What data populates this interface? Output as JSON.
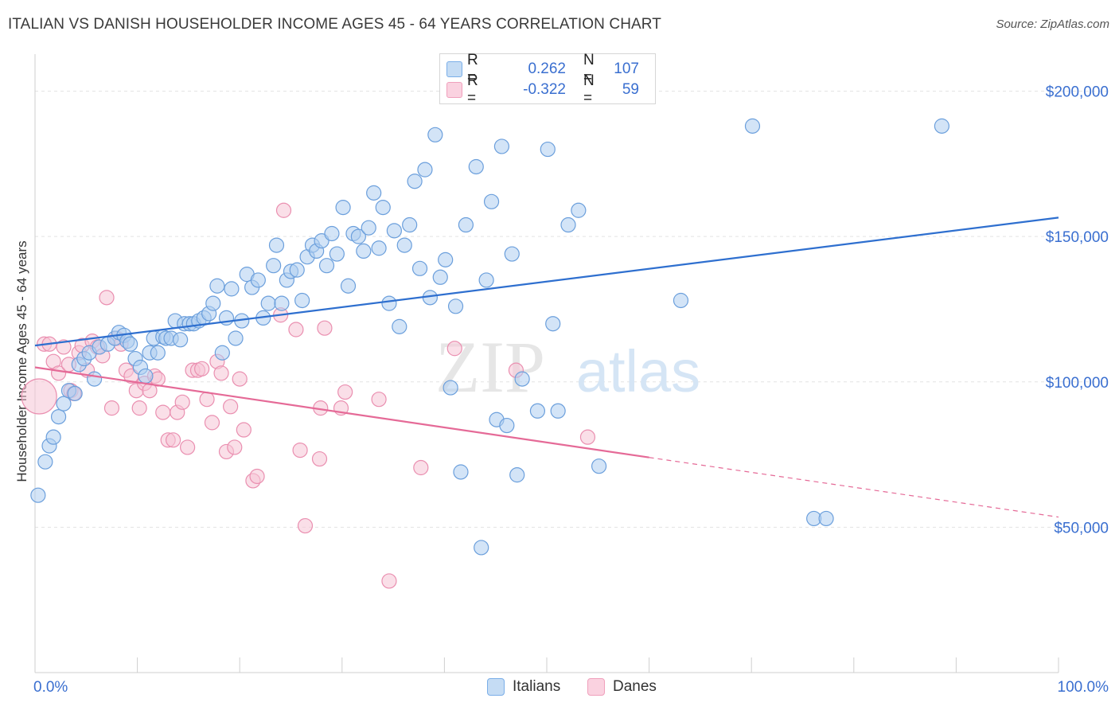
{
  "title": "ITALIAN VS DANISH HOUSEHOLDER INCOME AGES 45 - 64 YEARS CORRELATION CHART",
  "source": "Source: ZipAtlas.com",
  "watermark": {
    "part1": "ZIP",
    "part2": "atlas"
  },
  "legend": {
    "rows": [
      {
        "r_label": "R =",
        "r_value": "0.262",
        "n_label": "N =",
        "n_value": "107",
        "color": "#7aaee8"
      },
      {
        "r_label": "R =",
        "r_value": "-0.322",
        "n_label": "N =",
        "n_value": "59",
        "color": "#f0a0bc"
      }
    ]
  },
  "colors": {
    "italians_fill": "#aecdf0",
    "italians_stroke": "#6b9fdc",
    "italians_line": "#2e6fcf",
    "danes_fill": "#f6c4d6",
    "danes_stroke": "#ea8fb0",
    "danes_line": "#e56a97",
    "tick_label": "#3a6fd0",
    "grid": "#e3e3e3"
  },
  "chart_data": {
    "type": "scatter",
    "title": "ITALIAN VS DANISH HOUSEHOLDER INCOME AGES 45 - 64 YEARS CORRELATION CHART",
    "xlabel": "",
    "ylabel": "Householder Income Ages 45 - 64 years",
    "xlim": [
      0,
      100
    ],
    "ylim": [
      0,
      210000
    ],
    "x_tick_labels": [
      "0.0%",
      "100.0%"
    ],
    "y_ticks": [
      50000,
      100000,
      150000,
      200000
    ],
    "y_tick_labels": [
      "$50,000",
      "$100,000",
      "$150,000",
      "$200,000"
    ],
    "grid": "horizontal dashed",
    "legend_position": "bottom-center",
    "series": [
      {
        "name": "Italians",
        "r": 0.262,
        "n": 107,
        "trend": {
          "x": [
            0,
            100
          ],
          "y": [
            112500,
            156500
          ]
        },
        "points": [
          [
            0.3,
            61000
          ],
          [
            1.0,
            72500
          ],
          [
            1.4,
            78000
          ],
          [
            1.8,
            81000
          ],
          [
            2.3,
            88000
          ],
          [
            2.8,
            92500
          ],
          [
            3.3,
            97000
          ],
          [
            3.9,
            96000
          ],
          [
            4.3,
            106000
          ],
          [
            4.8,
            108000
          ],
          [
            5.3,
            110000
          ],
          [
            5.8,
            101000
          ],
          [
            6.3,
            112000
          ],
          [
            7.1,
            113000
          ],
          [
            7.8,
            115000
          ],
          [
            8.2,
            117000
          ],
          [
            8.7,
            116000
          ],
          [
            9.0,
            114000
          ],
          [
            9.3,
            113000
          ],
          [
            9.8,
            108000
          ],
          [
            10.3,
            105000
          ],
          [
            10.8,
            102000
          ],
          [
            11.2,
            110000
          ],
          [
            11.6,
            115000
          ],
          [
            12.0,
            110000
          ],
          [
            12.5,
            115500
          ],
          [
            12.8,
            115000
          ],
          [
            13.3,
            115000
          ],
          [
            13.7,
            121000
          ],
          [
            14.2,
            114500
          ],
          [
            14.6,
            120000
          ],
          [
            15.1,
            120000
          ],
          [
            15.5,
            120000
          ],
          [
            16.0,
            121000
          ],
          [
            16.5,
            122000
          ],
          [
            17.0,
            123500
          ],
          [
            17.4,
            127000
          ],
          [
            17.8,
            133000
          ],
          [
            18.3,
            110000
          ],
          [
            18.7,
            122000
          ],
          [
            19.2,
            132000
          ],
          [
            19.6,
            115000
          ],
          [
            20.2,
            121000
          ],
          [
            20.7,
            137000
          ],
          [
            21.2,
            132500
          ],
          [
            21.8,
            135000
          ],
          [
            22.3,
            122000
          ],
          [
            22.8,
            127000
          ],
          [
            23.3,
            140000
          ],
          [
            23.6,
            147000
          ],
          [
            24.1,
            127000
          ],
          [
            24.6,
            135000
          ],
          [
            25.0,
            138000
          ],
          [
            25.6,
            138500
          ],
          [
            26.1,
            128000
          ],
          [
            26.6,
            143000
          ],
          [
            27.1,
            147000
          ],
          [
            27.5,
            145000
          ],
          [
            28.0,
            148500
          ],
          [
            28.5,
            140000
          ],
          [
            29.0,
            151000
          ],
          [
            29.5,
            144000
          ],
          [
            30.1,
            160000
          ],
          [
            30.6,
            133000
          ],
          [
            31.1,
            151000
          ],
          [
            31.6,
            150000
          ],
          [
            32.1,
            145000
          ],
          [
            32.6,
            153000
          ],
          [
            33.1,
            165000
          ],
          [
            33.6,
            146000
          ],
          [
            34.0,
            160000
          ],
          [
            34.6,
            127000
          ],
          [
            35.1,
            152000
          ],
          [
            35.6,
            119000
          ],
          [
            36.1,
            147000
          ],
          [
            36.6,
            154000
          ],
          [
            37.1,
            169000
          ],
          [
            37.6,
            139000
          ],
          [
            38.1,
            173000
          ],
          [
            38.6,
            129000
          ],
          [
            39.1,
            185000
          ],
          [
            39.6,
            136000
          ],
          [
            40.1,
            142000
          ],
          [
            40.6,
            98000
          ],
          [
            41.1,
            126000
          ],
          [
            41.6,
            69000
          ],
          [
            42.1,
            154000
          ],
          [
            43.1,
            174000
          ],
          [
            43.6,
            43000
          ],
          [
            44.1,
            135000
          ],
          [
            44.6,
            162000
          ],
          [
            45.1,
            87000
          ],
          [
            45.6,
            181000
          ],
          [
            46.1,
            85000
          ],
          [
            46.6,
            144000
          ],
          [
            47.1,
            68000
          ],
          [
            47.6,
            101000
          ],
          [
            49.1,
            90000
          ],
          [
            50.1,
            180000
          ],
          [
            50.6,
            120000
          ],
          [
            51.1,
            90000
          ],
          [
            52.1,
            154000
          ],
          [
            53.1,
            159000
          ],
          [
            55.1,
            71000
          ],
          [
            63.1,
            128000
          ],
          [
            70.1,
            188000
          ],
          [
            76.1,
            53000
          ],
          [
            77.3,
            53000
          ],
          [
            88.6,
            188000
          ]
        ]
      },
      {
        "name": "Danes",
        "r": -0.322,
        "n": 59,
        "trend": {
          "x": [
            0,
            60
          ],
          "y": [
            105000,
            74000
          ],
          "dashed_extension": {
            "x": [
              60,
              100
            ],
            "y": [
              74000,
              53500
            ]
          }
        },
        "points": [
          [
            0.4,
            95000
          ],
          [
            0.9,
            113000
          ],
          [
            1.4,
            113000
          ],
          [
            1.8,
            107000
          ],
          [
            2.3,
            103000
          ],
          [
            2.8,
            112000
          ],
          [
            3.3,
            106000
          ],
          [
            3.5,
            97000
          ],
          [
            3.8,
            96000
          ],
          [
            4.3,
            110000
          ],
          [
            4.6,
            112500
          ],
          [
            5.1,
            104000
          ],
          [
            5.6,
            114000
          ],
          [
            6.1,
            112000
          ],
          [
            6.6,
            109000
          ],
          [
            7.0,
            129000
          ],
          [
            7.5,
            91000
          ],
          [
            8.0,
            115000
          ],
          [
            8.4,
            113000
          ],
          [
            8.9,
            104000
          ],
          [
            9.4,
            102000
          ],
          [
            9.9,
            97000
          ],
          [
            10.2,
            91000
          ],
          [
            10.7,
            99500
          ],
          [
            11.2,
            97000
          ],
          [
            11.7,
            102000
          ],
          [
            12.0,
            101000
          ],
          [
            12.5,
            89500
          ],
          [
            13.0,
            80000
          ],
          [
            13.5,
            80000
          ],
          [
            13.9,
            89500
          ],
          [
            14.4,
            93000
          ],
          [
            14.9,
            77500
          ],
          [
            15.4,
            104000
          ],
          [
            15.9,
            104000
          ],
          [
            16.3,
            104500
          ],
          [
            16.8,
            94000
          ],
          [
            17.3,
            86000
          ],
          [
            17.8,
            107000
          ],
          [
            18.2,
            103000
          ],
          [
            18.7,
            76000
          ],
          [
            19.1,
            91500
          ],
          [
            19.5,
            77500
          ],
          [
            20.0,
            101000
          ],
          [
            20.4,
            83500
          ],
          [
            21.3,
            66000
          ],
          [
            21.7,
            67500
          ],
          [
            24.0,
            123000
          ],
          [
            24.3,
            159000
          ],
          [
            25.5,
            118000
          ],
          [
            25.9,
            76500
          ],
          [
            26.4,
            50500
          ],
          [
            27.8,
            73500
          ],
          [
            27.9,
            91000
          ],
          [
            28.3,
            118500
          ],
          [
            29.9,
            91000
          ],
          [
            30.3,
            96500
          ],
          [
            33.6,
            94000
          ],
          [
            34.6,
            31500
          ],
          [
            37.7,
            70500
          ],
          [
            41.0,
            111500
          ],
          [
            47.0,
            104000
          ],
          [
            54.0,
            81000
          ]
        ]
      }
    ]
  },
  "axes": {
    "y_title": "Householder Income Ages 45 - 64 years",
    "x_left_label": "0.0%",
    "x_right_label": "100.0%"
  },
  "bottom_legend": [
    "Italians",
    "Danes"
  ]
}
